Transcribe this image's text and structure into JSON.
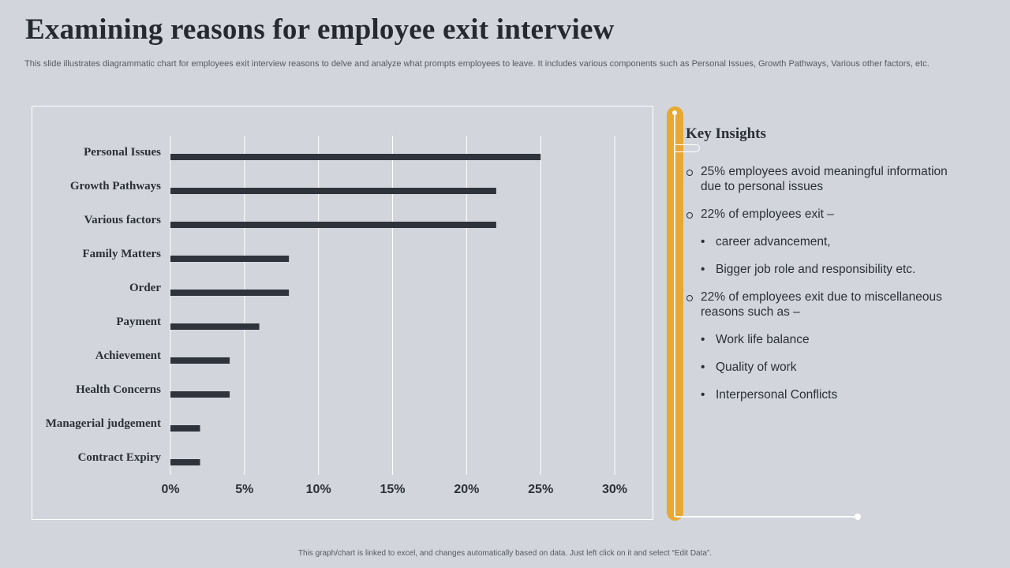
{
  "header": {
    "title": "Examining reasons for employee exit interview",
    "subtitle": "This slide illustrates diagrammatic chart for employees exit interview reasons to delve and analyze what prompts employees to leave. It includes various components such as Personal Issues, Growth Pathways, Various other factors, etc."
  },
  "chart_data": {
    "type": "bar",
    "orientation": "horizontal",
    "title": "",
    "xlabel": "",
    "ylabel": "",
    "categories": [
      "Personal Issues",
      "Growth Pathways",
      "Various factors",
      "Family Matters",
      "Order",
      "Payment",
      "Achievement",
      "Health Concerns",
      "Managerial judgement",
      "Contract Expiry"
    ],
    "values": [
      25,
      22,
      22,
      8,
      8,
      6,
      4,
      4,
      2,
      2
    ],
    "xlim": [
      0,
      30
    ],
    "ticks": [
      0,
      5,
      10,
      15,
      20,
      25,
      30
    ],
    "tick_suffix": "%",
    "grid": true,
    "bar_color": "#2f333b"
  },
  "insights": {
    "title": "Key Insights",
    "items": [
      {
        "style": "circle",
        "text": "25% employees avoid meaningful information due to personal issues"
      },
      {
        "style": "circle",
        "text": "22% of employees exit –"
      },
      {
        "style": "dot",
        "text": "career advancement,"
      },
      {
        "style": "dot",
        "text": "Bigger job role and responsibility etc."
      },
      {
        "style": "circle",
        "text": "22% of employees exit due to miscellaneous reasons such as –"
      },
      {
        "style": "dot",
        "text": "Work life balance"
      },
      {
        "style": "dot",
        "text": "Quality of work"
      },
      {
        "style": "dot",
        "text": "Interpersonal Conflicts"
      }
    ]
  },
  "footer": {
    "note": "This graph/chart is linked to excel, and changes automatically based on data. Just left click on it and select “Edit Data”."
  },
  "colors": {
    "accent": "#e8a832",
    "background": "#d2d6dc",
    "bar": "#2f333b"
  }
}
